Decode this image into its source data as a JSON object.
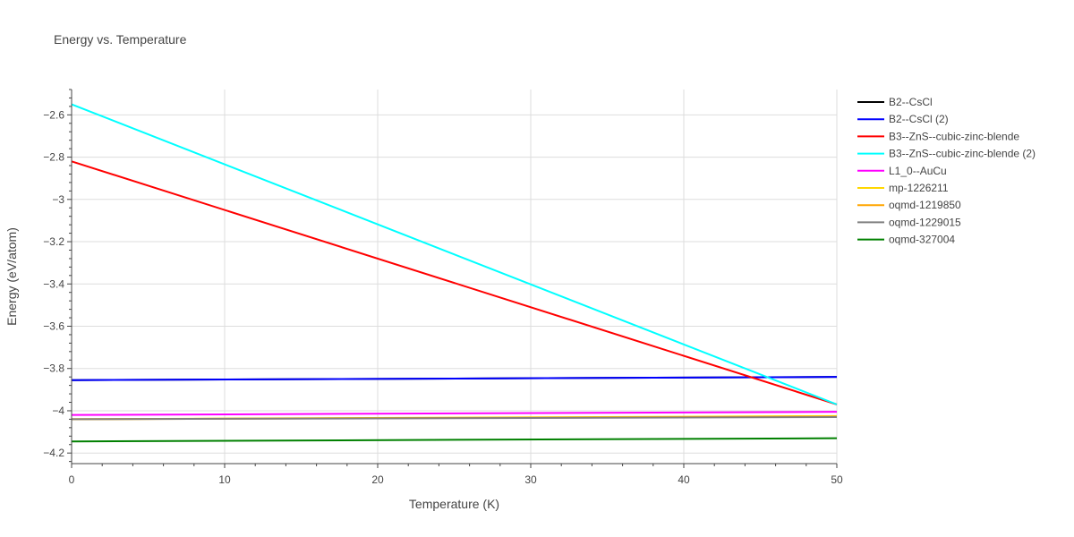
{
  "chart_data": {
    "type": "line",
    "title": "Energy vs. Temperature",
    "xlabel": "Temperature (K)",
    "ylabel": "Energy (eV/atom)",
    "xlim": [
      0,
      50
    ],
    "ylim": [
      -4.25,
      -2.48
    ],
    "xticks": [
      0,
      10,
      20,
      30,
      40,
      50
    ],
    "yticks": [
      -2.6,
      -2.8,
      -3,
      -3.2,
      -3.4,
      -3.6,
      -3.8,
      -4,
      -4.2
    ],
    "ytick_labels": [
      "−2.6",
      "−2.8",
      "−3",
      "−3.2",
      "−3.4",
      "−3.6",
      "−3.8",
      "−4",
      "−4.2"
    ],
    "grid": true,
    "legend_position": "right",
    "series": [
      {
        "name": "B2--CsCl",
        "color": "#000000",
        "x": [
          0,
          50
        ],
        "y": [
          -3.855,
          -3.84
        ]
      },
      {
        "name": "B2--CsCl (2)",
        "color": "#0000ff",
        "x": [
          0,
          50
        ],
        "y": [
          -3.855,
          -3.84
        ]
      },
      {
        "name": "B3--ZnS--cubic-zinc-blende",
        "color": "#ff0000",
        "x": [
          0,
          50
        ],
        "y": [
          -2.82,
          -3.97
        ]
      },
      {
        "name": "B3--ZnS--cubic-zinc-blende (2)",
        "color": "#00ffff",
        "x": [
          0,
          50
        ],
        "y": [
          -2.55,
          -3.97
        ]
      },
      {
        "name": "L1_0--AuCu",
        "color": "#ff00ff",
        "x": [
          0,
          50
        ],
        "y": [
          -4.02,
          -4.005
        ]
      },
      {
        "name": "mp-1226211",
        "color": "#ffd700",
        "x": [
          0,
          50
        ],
        "y": [
          -4.04,
          -4.025
        ]
      },
      {
        "name": "oqmd-1219850",
        "color": "#ffa500",
        "x": [
          0,
          50
        ],
        "y": [
          -4.04,
          -4.028
        ]
      },
      {
        "name": "oqmd-1229015",
        "color": "#808080",
        "x": [
          0,
          50
        ],
        "y": [
          -4.04,
          -4.03
        ]
      },
      {
        "name": "oqmd-327004",
        "color": "#008000",
        "x": [
          0,
          50
        ],
        "y": [
          -4.145,
          -4.13
        ]
      }
    ]
  }
}
